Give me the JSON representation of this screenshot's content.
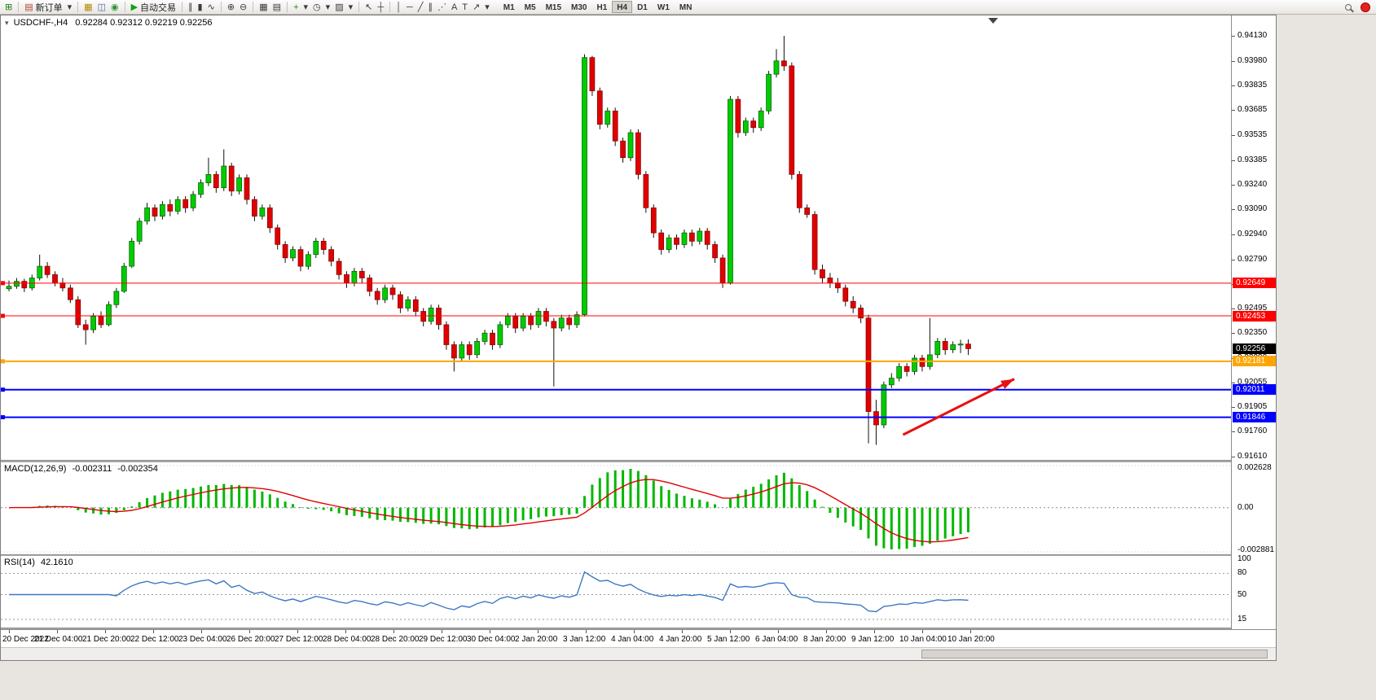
{
  "toolbar": {
    "groups": [
      {
        "items": [
          {
            "name": "new-chart",
            "glyph": "⊞",
            "color": "#1d7a1d"
          }
        ]
      },
      {
        "items": [
          {
            "name": "new-order",
            "glyph": "▤",
            "color": "#b04030",
            "label": "新订单"
          },
          {
            "name": "new-order-dropdown",
            "glyph": "▾"
          }
        ]
      },
      {
        "items": [
          {
            "name": "profiles",
            "glyph": "▦",
            "color": "#b08c00"
          },
          {
            "name": "data-window",
            "glyph": "◫",
            "color": "#4668a8"
          },
          {
            "name": "navigator",
            "glyph": "◉",
            "color": "#2f8f2f"
          }
        ]
      },
      {
        "items": [
          {
            "name": "auto-trading",
            "glyph": "▶",
            "color": "#12a112",
            "label": "自动交易"
          }
        ]
      },
      {
        "items": [
          {
            "name": "bar-chart",
            "glyph": "∥"
          },
          {
            "name": "candlestick-chart",
            "glyph": "▮"
          },
          {
            "name": "line-chart",
            "glyph": "∿"
          }
        ]
      },
      {
        "items": [
          {
            "name": "zoom-in",
            "glyph": "⊕"
          },
          {
            "name": "zoom-out",
            "glyph": "⊖"
          }
        ]
      },
      {
        "items": [
          {
            "name": "tile-windows",
            "glyph": "▦"
          },
          {
            "name": "arrange-windows",
            "glyph": "▤"
          }
        ]
      },
      {
        "items": [
          {
            "name": "indicators",
            "glyph": "+",
            "color": "#1d8a1d"
          },
          {
            "name": "indicators-dropdown",
            "glyph": "▾"
          },
          {
            "name": "periods",
            "glyph": "◷"
          },
          {
            "name": "periods-dropdown",
            "glyph": "▾"
          },
          {
            "name": "templates",
            "glyph": "▨"
          },
          {
            "name": "templates-dropdown",
            "glyph": "▾"
          }
        ]
      },
      {
        "items": [
          {
            "name": "cursor",
            "glyph": "↖"
          },
          {
            "name": "crosshair",
            "glyph": "┼"
          }
        ]
      },
      {
        "items": [
          {
            "name": "vertical-line",
            "glyph": "│"
          },
          {
            "name": "horizontal-line",
            "glyph": "─"
          },
          {
            "name": "trendline",
            "glyph": "╱"
          },
          {
            "name": "equidistant-channel",
            "glyph": "∥"
          },
          {
            "name": "fibonacci",
            "glyph": "⋰"
          },
          {
            "name": "text",
            "glyph": "A"
          },
          {
            "name": "text-label",
            "glyph": "T"
          },
          {
            "name": "arrows-tool",
            "glyph": "↗"
          },
          {
            "name": "arrows-dropdown",
            "glyph": "▾"
          }
        ]
      }
    ],
    "timeframes": [
      "M1",
      "M5",
      "M15",
      "M30",
      "H1",
      "H4",
      "D1",
      "W1",
      "MN"
    ],
    "active_timeframe": "H4"
  },
  "chart_window": {
    "symbol_title": "USDCHF-,H4",
    "ohlc": "0.92284 0.92312 0.92219 0.92256",
    "price_range": {
      "max": 0.9413,
      "min": 0.9161
    },
    "price_axis_labels": [
      "0.94130",
      "0.93980",
      "0.93835",
      "0.93685",
      "0.93535",
      "0.93385",
      "0.93240",
      "0.93090",
      "0.92940",
      "0.92790",
      "0.92645",
      "0.92495",
      "0.92350",
      "0.92200",
      "0.92055",
      "0.91905",
      "0.91760",
      "0.91610"
    ],
    "time_axis_labels": [
      "20 Dec 2022",
      "21 Dec 04:00",
      "21 Dec 20:00",
      "22 Dec 12:00",
      "23 Dec 04:00",
      "26 Dec 20:00",
      "27 Dec 12:00",
      "28 Dec 04:00",
      "28 Dec 20:00",
      "29 Dec 12:00",
      "30 Dec 04:00",
      "2 Jan 20:00",
      "3 Jan 12:00",
      "4 Jan 04:00",
      "4 Jan 20:00",
      "5 Jan 12:00",
      "6 Jan 04:00",
      "8 Jan 20:00",
      "9 Jan 12:00",
      "10 Jan 04:00",
      "10 Jan 20:00"
    ],
    "price_lines": [
      {
        "name": "resistance-upper",
        "price": 0.92649,
        "color": "#ff0000",
        "label": "0.92649",
        "width": 1
      },
      {
        "name": "resistance-lower",
        "price": 0.92453,
        "color": "#ff0000",
        "label": "0.92453",
        "width": 1
      },
      {
        "name": "pivot-orange",
        "price": 0.92181,
        "color": "#ffa500",
        "label": "0.92181",
        "width": 2
      },
      {
        "name": "support-upper",
        "price": 0.92011,
        "color": "#0000ff",
        "label": "0.92011",
        "width": 2
      },
      {
        "name": "support-lower",
        "price": 0.91846,
        "color": "#0000ff",
        "label": "0.91846",
        "width": 2
      }
    ],
    "current_price": {
      "label": "0.92256",
      "value": 0.92256
    }
  },
  "macd_panel": {
    "title": "MACD(12,26,9)",
    "value_main": "-0.002311",
    "value_signal": "-0.002354",
    "axis_labels": [
      "0.002628",
      "0.00",
      "-0.002881"
    ]
  },
  "rsi_panel": {
    "title": "RSI(14)",
    "value": "42.1610",
    "axis_labels": [
      "100",
      "80",
      "50",
      "15"
    ],
    "levels": [
      80,
      50,
      15
    ]
  },
  "chart_data": {
    "type": "candlestick",
    "symbol": "USDCHF",
    "timeframe": "H4",
    "price_base": 0.9,
    "price_scale": 1e-05,
    "colors": {
      "bull": "#00CC00",
      "bear": "#E00000",
      "macd_hist": "#00B800",
      "macd_signal": "#E00000",
      "rsi_line": "#3E78C2"
    },
    "candles_ohlc": [
      [
        2615,
        2665,
        2600,
        2630
      ],
      [
        2630,
        2680,
        2615,
        2660
      ],
      [
        2660,
        2675,
        2595,
        2620
      ],
      [
        2620,
        2700,
        2605,
        2680
      ],
      [
        2680,
        2820,
        2665,
        2750
      ],
      [
        2750,
        2775,
        2680,
        2700
      ],
      [
        2700,
        2720,
        2630,
        2650
      ],
      [
        2650,
        2680,
        2600,
        2620
      ],
      [
        2620,
        2640,
        2530,
        2550
      ],
      [
        2550,
        2570,
        2380,
        2400
      ],
      [
        2400,
        2430,
        2280,
        2370
      ],
      [
        2370,
        2470,
        2350,
        2450
      ],
      [
        2450,
        2480,
        2380,
        2400
      ],
      [
        2400,
        2540,
        2390,
        2520
      ],
      [
        2520,
        2620,
        2500,
        2600
      ],
      [
        2600,
        2770,
        2590,
        2750
      ],
      [
        2750,
        2920,
        2740,
        2900
      ],
      [
        2900,
        3040,
        2880,
        3020
      ],
      [
        3020,
        3130,
        3000,
        3100
      ],
      [
        3100,
        3120,
        3020,
        3050
      ],
      [
        3050,
        3140,
        3030,
        3120
      ],
      [
        3120,
        3150,
        3050,
        3080
      ],
      [
        3080,
        3170,
        3060,
        3150
      ],
      [
        3150,
        3170,
        3070,
        3100
      ],
      [
        3100,
        3200,
        3080,
        3180
      ],
      [
        3180,
        3270,
        3160,
        3250
      ],
      [
        3250,
        3400,
        3230,
        3300
      ],
      [
        3300,
        3320,
        3190,
        3220
      ],
      [
        3220,
        3450,
        3200,
        3350
      ],
      [
        3350,
        3370,
        3170,
        3200
      ],
      [
        3200,
        3300,
        3180,
        3280
      ],
      [
        3280,
        3300,
        3120,
        3150
      ],
      [
        3150,
        3170,
        3020,
        3050
      ],
      [
        3050,
        3120,
        3030,
        3100
      ],
      [
        3100,
        3120,
        2950,
        2980
      ],
      [
        2980,
        3000,
        2850,
        2880
      ],
      [
        2880,
        2900,
        2770,
        2800
      ],
      [
        2800,
        2870,
        2780,
        2850
      ],
      [
        2850,
        2870,
        2720,
        2750
      ],
      [
        2750,
        2840,
        2730,
        2820
      ],
      [
        2820,
        2920,
        2800,
        2900
      ],
      [
        2900,
        2920,
        2820,
        2850
      ],
      [
        2850,
        2870,
        2750,
        2780
      ],
      [
        2780,
        2800,
        2670,
        2700
      ],
      [
        2700,
        2720,
        2620,
        2650
      ],
      [
        2650,
        2740,
        2630,
        2720
      ],
      [
        2720,
        2740,
        2650,
        2680
      ],
      [
        2680,
        2700,
        2570,
        2600
      ],
      [
        2600,
        2620,
        2520,
        2550
      ],
      [
        2550,
        2640,
        2530,
        2620
      ],
      [
        2620,
        2640,
        2550,
        2580
      ],
      [
        2580,
        2600,
        2470,
        2500
      ],
      [
        2500,
        2570,
        2480,
        2550
      ],
      [
        2550,
        2570,
        2450,
        2480
      ],
      [
        2480,
        2500,
        2390,
        2420
      ],
      [
        2420,
        2520,
        2400,
        2500
      ],
      [
        2500,
        2520,
        2370,
        2400
      ],
      [
        2400,
        2420,
        2250,
        2280
      ],
      [
        2280,
        2300,
        2120,
        2200
      ],
      [
        2200,
        2300,
        2180,
        2280
      ],
      [
        2280,
        2300,
        2190,
        2220
      ],
      [
        2220,
        2320,
        2200,
        2300
      ],
      [
        2300,
        2370,
        2280,
        2350
      ],
      [
        2350,
        2370,
        2250,
        2280
      ],
      [
        2280,
        2420,
        2260,
        2400
      ],
      [
        2400,
        2470,
        2380,
        2450
      ],
      [
        2450,
        2470,
        2350,
        2380
      ],
      [
        2380,
        2470,
        2360,
        2450
      ],
      [
        2450,
        2470,
        2370,
        2400
      ],
      [
        2400,
        2500,
        2380,
        2480
      ],
      [
        2480,
        2500,
        2390,
        2420
      ],
      [
        2420,
        2440,
        2030,
        2380
      ],
      [
        2380,
        2460,
        2360,
        2440
      ],
      [
        2440,
        2460,
        2370,
        2400
      ],
      [
        2400,
        2480,
        2380,
        2460
      ],
      [
        2460,
        4020,
        2450,
        4000
      ],
      [
        4000,
        4010,
        3770,
        3800
      ],
      [
        3800,
        3820,
        3570,
        3600
      ],
      [
        3600,
        3700,
        3580,
        3680
      ],
      [
        3680,
        3700,
        3470,
        3500
      ],
      [
        3500,
        3520,
        3370,
        3400
      ],
      [
        3400,
        3570,
        3380,
        3550
      ],
      [
        3550,
        3570,
        3270,
        3300
      ],
      [
        3300,
        3320,
        3070,
        3100
      ],
      [
        3100,
        3120,
        2920,
        2950
      ],
      [
        2950,
        2970,
        2820,
        2850
      ],
      [
        2850,
        2940,
        2830,
        2920
      ],
      [
        2920,
        2940,
        2850,
        2880
      ],
      [
        2880,
        2970,
        2860,
        2950
      ],
      [
        2950,
        2970,
        2870,
        2900
      ],
      [
        2900,
        2980,
        2880,
        2960
      ],
      [
        2960,
        2980,
        2850,
        2880
      ],
      [
        2880,
        2900,
        2770,
        2800
      ],
      [
        2800,
        2820,
        2620,
        2650
      ],
      [
        2650,
        3770,
        2640,
        3750
      ],
      [
        3750,
        3770,
        3520,
        3550
      ],
      [
        3550,
        3640,
        3530,
        3620
      ],
      [
        3620,
        3640,
        3550,
        3580
      ],
      [
        3580,
        3700,
        3560,
        3680
      ],
      [
        3680,
        3920,
        3660,
        3900
      ],
      [
        3900,
        4050,
        3880,
        3980
      ],
      [
        3980,
        4130,
        3920,
        3950
      ],
      [
        3950,
        3970,
        3270,
        3300
      ],
      [
        3300,
        3320,
        3070,
        3100
      ],
      [
        3100,
        3120,
        3040,
        3060
      ],
      [
        3060,
        3080,
        2700,
        2730
      ],
      [
        2730,
        2760,
        2650,
        2680
      ],
      [
        2680,
        2710,
        2620,
        2650
      ],
      [
        2650,
        2680,
        2590,
        2620
      ],
      [
        2620,
        2640,
        2510,
        2540
      ],
      [
        2540,
        2570,
        2470,
        2500
      ],
      [
        2500,
        2520,
        2410,
        2440
      ],
      [
        2440,
        2460,
        1690,
        1880
      ],
      [
        1880,
        1950,
        1680,
        1800
      ],
      [
        1800,
        2060,
        1780,
        2040
      ],
      [
        2040,
        2110,
        2020,
        2080
      ],
      [
        2080,
        2170,
        2060,
        2150
      ],
      [
        2150,
        2170,
        2090,
        2120
      ],
      [
        2120,
        2220,
        2100,
        2200
      ],
      [
        2200,
        2220,
        2120,
        2150
      ],
      [
        2150,
        2440,
        2130,
        2220
      ],
      [
        2220,
        2320,
        2200,
        2300
      ],
      [
        2300,
        2320,
        2220,
        2250
      ],
      [
        2250,
        2300,
        2230,
        2280
      ],
      [
        2280,
        2310,
        2230,
        2284
      ],
      [
        2284,
        2312,
        2219,
        2256
      ]
    ],
    "annotation_arrow": {
      "from_bar": 116.5,
      "from_price": 0.91741,
      "to_bar": 131,
      "to_price": 0.92075,
      "color": "#E81010"
    },
    "indicators": [
      {
        "name": "MACD",
        "params": [
          12,
          26,
          9
        ],
        "values": [
          -0.002311,
          -0.002354
        ]
      },
      {
        "name": "RSI",
        "params": [
          14
        ],
        "value": 42.161
      }
    ]
  }
}
